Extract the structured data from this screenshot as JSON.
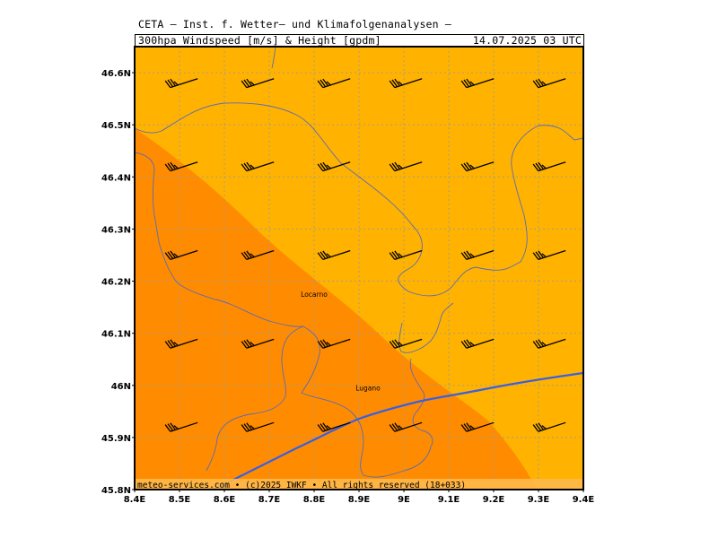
{
  "header": {
    "title": "CETA – Inst. f. Wetter– und Klimafolgenanalysen –",
    "product": "300hpa_Windspeed_[m/s]_&_Height_[gpdm]",
    "valid_time": "14.07.2025 03 UTC"
  },
  "map": {
    "lon_ticks": [
      "8.4E",
      "8.5E",
      "8.6E",
      "8.7E",
      "8.8E",
      "8.9E",
      "9E",
      "9.1E",
      "9.2E",
      "9.3E",
      "9.4E"
    ],
    "lat_ticks": [
      "46.6N",
      "46.5N",
      "46.4N",
      "46.3N",
      "46.2N",
      "46.1N",
      "46N",
      "45.9N",
      "45.8N"
    ],
    "lon_range": [
      8.4,
      9.4
    ],
    "lat_range": [
      45.8,
      46.65
    ],
    "grid": true,
    "cities": [
      {
        "name": "Locarno",
        "lon": 8.8,
        "lat": 46.17
      },
      {
        "name": "Lugano",
        "lon": 8.92,
        "lat": 45.99
      }
    ],
    "colors": {
      "light_fill": "#ffb300",
      "dark_fill": "#ff8c00",
      "contour": "#3a5fe0",
      "border": "#5a6ab8",
      "grid": "#9a9a9a",
      "barb": "#000000"
    },
    "wind_barbs": {
      "speed_ms": 30,
      "direction": "WSW",
      "lons": [
        8.51,
        8.68,
        8.85,
        9.01,
        9.17,
        9.33
      ],
      "lats": [
        46.58,
        46.42,
        46.25,
        46.08,
        45.92
      ]
    }
  },
  "footer": {
    "credit": "meteo-services.com • (c)2025 IWKF • All rights reserved (18+033)"
  }
}
